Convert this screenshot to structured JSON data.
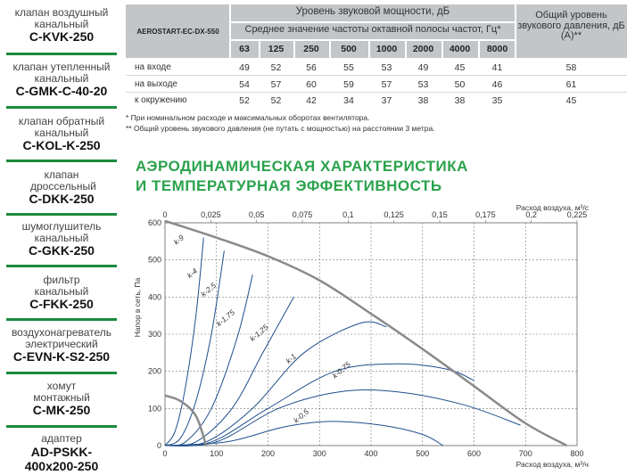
{
  "sidebar": {
    "items": [
      {
        "name": "клапан воздушный канальный",
        "code": "C-KVK-250"
      },
      {
        "name": "клапан утепленный канальный",
        "code": "C-GMK-C-40-20"
      },
      {
        "name": "клапан обратный канальный",
        "code": "C-KOL-K-250"
      },
      {
        "name": "клапан дроссельный",
        "code": "C-DKK-250"
      },
      {
        "name": "шумоглушитель канальный",
        "code": "C-GKK-250"
      },
      {
        "name": "фильтр канальный",
        "code": "C-FKK-250"
      },
      {
        "name": "воздухонагреватель электрический",
        "code": "C-EVN-K-S2-250"
      },
      {
        "name": "хомут монтажный",
        "code": "C-MK-250"
      },
      {
        "name": "адаптер",
        "code": "AD-PSKK-400x200-250"
      }
    ]
  },
  "table": {
    "model": "AEROSTART-EC-DX-550",
    "title": "Уровень звуковой мощности, дБ",
    "subtitle": "Среднее значение частоты октавной полосы частот, Гц*",
    "total_header": "Общий уровень звукового давления, дБ (А)**",
    "frequencies": [
      "63",
      "125",
      "250",
      "500",
      "1000",
      "2000",
      "4000",
      "8000"
    ],
    "rows": [
      {
        "label": "на входе",
        "values": [
          "49",
          "52",
          "56",
          "55",
          "53",
          "49",
          "45",
          "41"
        ],
        "total": "58"
      },
      {
        "label": "на выходе",
        "values": [
          "54",
          "57",
          "60",
          "59",
          "57",
          "53",
          "50",
          "46"
        ],
        "total": "61"
      },
      {
        "label": "к окружению",
        "values": [
          "52",
          "52",
          "42",
          "34",
          "37",
          "38",
          "38",
          "35"
        ],
        "total": "45"
      }
    ]
  },
  "notes": {
    "n1": "* При номинальном расходе и максимальных оборотах вентилятора.",
    "n2": "** Общий уровень звукового давления (не путать с мощностью) на расстоянии 3 метра."
  },
  "section": {
    "line1": "АЭРОДИНАМИЧЕСКАЯ ХАРАКТЕРИСТИКА",
    "line2": "И ТЕМПЕРАТУРНАЯ ЭФФЕКТИВНОСТЬ"
  },
  "chart_data": {
    "type": "line",
    "xlabel": "Расход воздуха, м³/ч",
    "x2label": "Расход воздуха, м³/с",
    "ylabel": "Напор в сеть, Па",
    "xlim": [
      0,
      800
    ],
    "x2lim": [
      0,
      0.225
    ],
    "ylim": [
      0,
      600
    ],
    "x_ticks": [
      "0",
      "100",
      "200",
      "300",
      "400",
      "500",
      "600",
      "700",
      "800"
    ],
    "x2_ticks": [
      "0",
      "0,025",
      "0,05",
      "0,075",
      "0,1",
      "0,125",
      "0,15",
      "0,175",
      "0,2",
      "0,225"
    ],
    "y_ticks": [
      "0",
      "100",
      "200",
      "300",
      "400",
      "500",
      "600"
    ],
    "grid": true,
    "curves": [
      {
        "name": "max",
        "points": [
          [
            0,
            605
          ],
          [
            100,
            560
          ],
          [
            200,
            510
          ],
          [
            300,
            445
          ],
          [
            400,
            355
          ],
          [
            500,
            260
          ],
          [
            600,
            160
          ],
          [
            700,
            60
          ],
          [
            780,
            0
          ]
        ]
      },
      {
        "name": "min",
        "points": [
          [
            0,
            135
          ],
          [
            30,
            120
          ],
          [
            60,
            80
          ],
          [
            80,
            0
          ]
        ]
      }
    ],
    "system_curves": [
      {
        "name": "k-9",
        "label": "k-9",
        "points": [
          [
            0,
            0
          ],
          [
            20,
            40
          ],
          [
            40,
            160
          ],
          [
            60,
            350
          ],
          [
            75,
            560
          ]
        ]
      },
      {
        "name": "k-4",
        "label": "k-4",
        "points": [
          [
            0,
            0
          ],
          [
            30,
            20
          ],
          [
            60,
            120
          ],
          [
            90,
            300
          ],
          [
            115,
            525
          ]
        ]
      },
      {
        "name": "k-2,5",
        "label": "k-2,5",
        "points": [
          [
            0,
            0
          ],
          [
            40,
            10
          ],
          [
            90,
            100
          ],
          [
            140,
            290
          ],
          [
            170,
            460
          ]
        ]
      },
      {
        "name": "k-1,75",
        "label": "k-1,75",
        "points": [
          [
            0,
            0
          ],
          [
            60,
            10
          ],
          [
            130,
            100
          ],
          [
            190,
            250
          ],
          [
            250,
            400
          ]
        ]
      },
      {
        "name": "k-1,25",
        "label": "k-1,25",
        "points": [
          [
            0,
            0
          ],
          [
            80,
            10
          ],
          [
            170,
            100
          ],
          [
            270,
            250
          ],
          [
            380,
            330
          ],
          [
            430,
            320
          ]
        ]
      },
      {
        "name": "k-1",
        "label": "k-1",
        "points": [
          [
            0,
            0
          ],
          [
            90,
            10
          ],
          [
            200,
            100
          ],
          [
            330,
            200
          ],
          [
            450,
            220
          ],
          [
            550,
            205
          ],
          [
            600,
            175
          ]
        ]
      },
      {
        "name": "k-0,75",
        "label": "k-0,75",
        "points": [
          [
            0,
            0
          ],
          [
            100,
            10
          ],
          [
            220,
            100
          ],
          [
            340,
            145
          ],
          [
            450,
            145
          ],
          [
            580,
            110
          ],
          [
            690,
            55
          ]
        ]
      },
      {
        "name": "k-0,5",
        "label": "k-0,5",
        "points": [
          [
            0,
            0
          ],
          [
            120,
            10
          ],
          [
            230,
            50
          ],
          [
            320,
            65
          ],
          [
            420,
            55
          ],
          [
            500,
            30
          ],
          [
            540,
            0
          ]
        ]
      }
    ]
  }
}
